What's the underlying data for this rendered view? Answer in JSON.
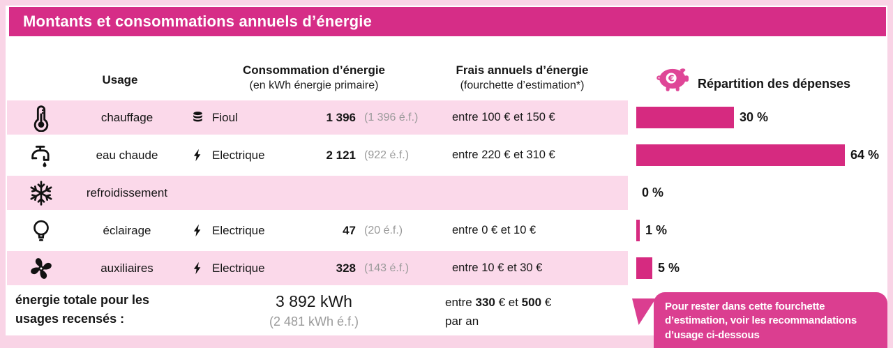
{
  "title": "Montants et consommations annuels d’énergie",
  "columns": {
    "usage": "Usage",
    "consumption_title": "Consommation d’énergie",
    "consumption_sub": "(en kWh énergie primaire)",
    "cost_title": "Frais annuels d’énergie",
    "cost_sub": "(fourchette d’estimation*)",
    "chart_title": "Répartition des dépenses"
  },
  "rows": [
    {
      "usage": "chauffage",
      "usage_icon": "thermometer-icon",
      "energy_icon": "fuel-barrel-icon",
      "energy": "Fioul",
      "kwh": "1 396",
      "kwh_ef": "(1 396 é.f.)",
      "cost": "entre 100 € et 150 €",
      "pct_label": "30 %"
    },
    {
      "usage": "eau chaude",
      "usage_icon": "faucet-icon",
      "energy_icon": "lightning-icon",
      "energy": "Electrique",
      "kwh": "2 121",
      "kwh_ef": "(922 é.f.)",
      "cost": "entre 220 € et 310 €",
      "pct_label": "64 %"
    },
    {
      "usage": "refroidissement",
      "usage_icon": "snowflake-icon",
      "energy_icon": "",
      "energy": "",
      "kwh": "",
      "kwh_ef": "",
      "cost": "",
      "pct_label": "0 %"
    },
    {
      "usage": "éclairage",
      "usage_icon": "lightbulb-icon",
      "energy_icon": "lightning-icon",
      "energy": "Electrique",
      "kwh": "47",
      "kwh_ef": "(20 é.f.)",
      "cost": "entre 0 € et 10 €",
      "pct_label": "1 %"
    },
    {
      "usage": "auxiliaires",
      "usage_icon": "fan-icon",
      "energy_icon": "lightning-icon",
      "energy": "Electrique",
      "kwh": "328",
      "kwh_ef": "(143 é.f.)",
      "cost": "entre 10 € et 30 €",
      "pct_label": "5 %"
    }
  ],
  "total": {
    "label_line1": "énergie totale pour les",
    "label_line2": "usages recensés :",
    "kwh": "3 892 kWh",
    "kwh_ef": "(2 481 kWh é.f.)",
    "cost_pre": "entre ",
    "cost_low": "330",
    "cost_mid": " € et ",
    "cost_high": "500",
    "cost_post": " €",
    "cost_line2": "par an"
  },
  "callout": "Pour rester dans cette fourchette d’estimation, voir les recommandations d’usage ci-dessous",
  "colors": {
    "accent": "#d62d87",
    "bar": "#d62a80",
    "callout": "#db3e90",
    "piggy": "#df4697",
    "row_pink": "#fbd9ea",
    "page_bg": "#f9d4e6",
    "muted_gray": "#9a9a9a"
  },
  "chart_data": {
    "type": "bar",
    "orientation": "horizontal",
    "title": "Répartition des dépenses",
    "categories": [
      "chauffage",
      "eau chaude",
      "refroidissement",
      "éclairage",
      "auxiliaires"
    ],
    "values": [
      30,
      64,
      0,
      1,
      5
    ],
    "unit": "%",
    "xlim": [
      0,
      100
    ],
    "grid": false,
    "bar_color": "#d62a80"
  }
}
